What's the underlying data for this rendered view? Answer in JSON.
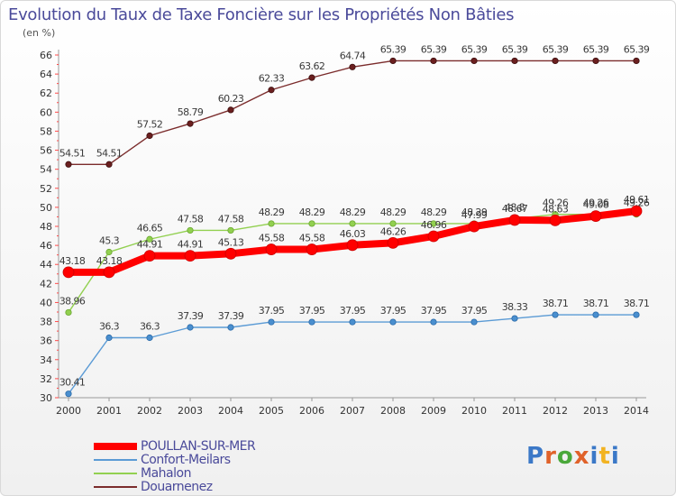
{
  "header": {
    "title": "Evolution du Taux de Taxe Foncière sur les Propriétés Non Bâties",
    "unit": "(en %)"
  },
  "logo": {
    "text": "Proxiti",
    "letter_colors": [
      "#3b78c7",
      "#e0622a",
      "#4aa83a",
      "#e0622a",
      "#3b78c7",
      "#f2b321",
      "#3b78c7"
    ]
  },
  "chart_data": {
    "type": "line",
    "x": [
      "2000",
      "2001",
      "2002",
      "2003",
      "2004",
      "2005",
      "2006",
      "2007",
      "2008",
      "2009",
      "2010",
      "2011",
      "2012",
      "2013",
      "2014"
    ],
    "ylim": [
      30,
      66
    ],
    "yticks": [
      30,
      32,
      34,
      36,
      38,
      40,
      42,
      44,
      46,
      48,
      50,
      52,
      54,
      56,
      58,
      60,
      62,
      64,
      66
    ],
    "grid": false,
    "legend_position": "bottom-left",
    "series": [
      {
        "name": "POULLAN-SUR-MER",
        "color": "#ff0000",
        "values": [
          43.18,
          43.18,
          44.91,
          44.91,
          45.13,
          45.58,
          45.58,
          46.03,
          46.26,
          46.96,
          47.99,
          48.67,
          48.63,
          49.08,
          49.61
        ],
        "labels": [
          "43.18",
          "43.18",
          "44.91",
          "44.91",
          "45.13",
          "45.58",
          "45.58",
          "46.03",
          "46.26",
          "46.96",
          "47.99",
          "48.67",
          "48.63",
          "49.08",
          "49.61"
        ]
      },
      {
        "name": "Confort-Meilars",
        "color": "#5b9bd5",
        "values": [
          30.41,
          36.3,
          36.3,
          37.39,
          37.39,
          37.95,
          37.95,
          37.95,
          37.95,
          37.95,
          37.95,
          38.33,
          38.71,
          38.71,
          38.71
        ],
        "labels": [
          "30.41",
          "36.3",
          "36.3",
          "37.39",
          "37.39",
          "37.95",
          "37.95",
          "37.95",
          "37.95",
          "37.95",
          "37.95",
          "38.33",
          "38.71",
          "38.71",
          "38.71"
        ]
      },
      {
        "name": "Mahalon",
        "color": "#92d050",
        "values": [
          38.96,
          45.3,
          46.65,
          47.58,
          47.58,
          48.29,
          48.29,
          48.29,
          48.29,
          48.29,
          48.29,
          48.8,
          49.26,
          49.26,
          49.26
        ],
        "labels": [
          "38.96",
          "45.3",
          "46.65",
          "47.58",
          "47.58",
          "48.29",
          "48.29",
          "48.29",
          "48.29",
          "48.29",
          "48.29",
          "48.8",
          "49.26",
          "49.26",
          "49.26"
        ]
      },
      {
        "name": "Douarnenez",
        "color": "#7b2c2c",
        "values": [
          54.51,
          54.51,
          57.52,
          58.79,
          60.23,
          62.33,
          63.62,
          64.74,
          65.39,
          65.39,
          65.39,
          65.39,
          65.39,
          65.39,
          65.39
        ],
        "labels": [
          "54.51",
          "54.51",
          "57.52",
          "58.79",
          "60.23",
          "62.33",
          "63.62",
          "64.74",
          "65.39",
          "65.39",
          "65.39",
          "65.39",
          "65.39",
          "65.39",
          "65.39"
        ]
      }
    ]
  }
}
